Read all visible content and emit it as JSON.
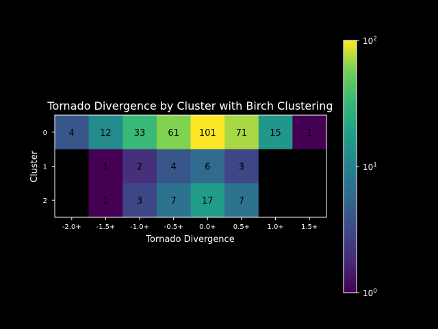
{
  "chart_data": {
    "type": "heatmap",
    "title": "Tornado Divergence by Cluster with Birch Clustering",
    "xlabel": "Tornado Divergence",
    "ylabel": "Cluster",
    "x_categories": [
      "-2.0+",
      "-1.5+",
      "-1.0+",
      "-0.5+",
      "0.0+",
      "0.5+",
      "1.0+",
      "1.5+"
    ],
    "y_categories": [
      "0",
      "1",
      "2"
    ],
    "values": [
      [
        4,
        12,
        33,
        61,
        101,
        71,
        15,
        1
      ],
      [
        null,
        1,
        2,
        4,
        6,
        3,
        null,
        null
      ],
      [
        null,
        1,
        3,
        7,
        17,
        7,
        null,
        null
      ]
    ],
    "colorscale": "viridis",
    "color_scale_type": "log",
    "color_range": [
      1,
      100
    ],
    "colorbar_ticks": [
      {
        "value": 1,
        "base": "10",
        "exp": "0"
      },
      {
        "value": 10,
        "base": "10",
        "exp": "1"
      },
      {
        "value": 100,
        "base": "10",
        "exp": "2"
      }
    ],
    "missing_color": "#000000"
  }
}
